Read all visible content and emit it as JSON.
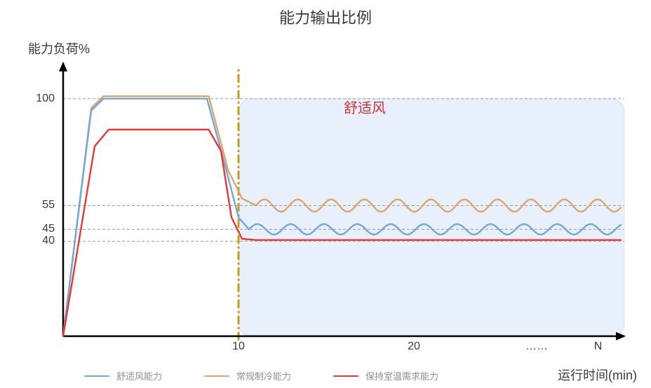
{
  "title": "能力输出比例",
  "y_axis_title": "能力负荷%",
  "x_axis_title": "运行时间(min)",
  "region_label": "舒适风",
  "region_label_color": "#d32f2f",
  "background_color": "#ffffff",
  "shaded_region": {
    "fill": "#e8f1fb",
    "border": "#d6e6f5",
    "x_start": 10,
    "x_end": 32,
    "y_start": 0,
    "y_end": 100,
    "border_radius": 18
  },
  "axes": {
    "xlim": [
      0,
      32
    ],
    "ylim": [
      0,
      115
    ],
    "axis_color": "#000000",
    "axis_width": 2.5,
    "gridline_color": "#9a9a9a",
    "gridline_dash": "4 3",
    "y_ticks": [
      {
        "value": 100,
        "label": "100"
      },
      {
        "value": 55,
        "label": "55"
      },
      {
        "value": 45,
        "label": "45"
      },
      {
        "value": 40,
        "label": "40"
      }
    ],
    "x_ticks": [
      {
        "value": 10,
        "label": "10"
      },
      {
        "value": 20,
        "label": "20"
      },
      {
        "value": 27,
        "label": "……"
      },
      {
        "value": 30.5,
        "label": "N"
      }
    ]
  },
  "divider": {
    "x": 10,
    "color": "#c79a1a",
    "width": 3,
    "dash": "12 4 3 4"
  },
  "series": [
    {
      "id": "comfort",
      "label": "舒适风能力",
      "color": "#6fa8dc",
      "width": 2.4,
      "initial": [
        {
          "x": 0,
          "y": 0
        },
        {
          "x": 1.6,
          "y": 95
        },
        {
          "x": 2.3,
          "y": 100
        },
        {
          "x": 8.2,
          "y": 100
        },
        {
          "x": 9.3,
          "y": 70
        },
        {
          "x": 10,
          "y": 50
        },
        {
          "x": 10.6,
          "y": 45
        }
      ],
      "oscillation": {
        "x_start": 10.6,
        "x_end": 31.8,
        "center": 45,
        "amplitude": 2.2,
        "period": 1.9
      }
    },
    {
      "id": "regular",
      "label": "常规制冷能力",
      "color": "#e0a36a",
      "width": 2.4,
      "initial": [
        {
          "x": 0,
          "y": 0
        },
        {
          "x": 1.6,
          "y": 96
        },
        {
          "x": 2.3,
          "y": 101
        },
        {
          "x": 8.3,
          "y": 101
        },
        {
          "x": 9.4,
          "y": 70
        },
        {
          "x": 10.2,
          "y": 58
        },
        {
          "x": 11,
          "y": 55
        }
      ],
      "oscillation": {
        "x_start": 11,
        "x_end": 31.8,
        "center": 55,
        "amplitude": 2.6,
        "period": 1.9
      }
    },
    {
      "id": "demand",
      "label": "保持室温需求能力",
      "color": "#e53935",
      "width": 2.4,
      "initial": [
        {
          "x": 0,
          "y": 0
        },
        {
          "x": 1.8,
          "y": 80
        },
        {
          "x": 2.6,
          "y": 87
        },
        {
          "x": 8.3,
          "y": 87
        },
        {
          "x": 9.0,
          "y": 78
        },
        {
          "x": 9.6,
          "y": 50
        },
        {
          "x": 10.2,
          "y": 41
        },
        {
          "x": 11,
          "y": 40.5
        },
        {
          "x": 31.8,
          "y": 40.5
        }
      ],
      "oscillation": null
    }
  ],
  "legend_fontsize": 13,
  "legend_color": "#8f8f8f"
}
